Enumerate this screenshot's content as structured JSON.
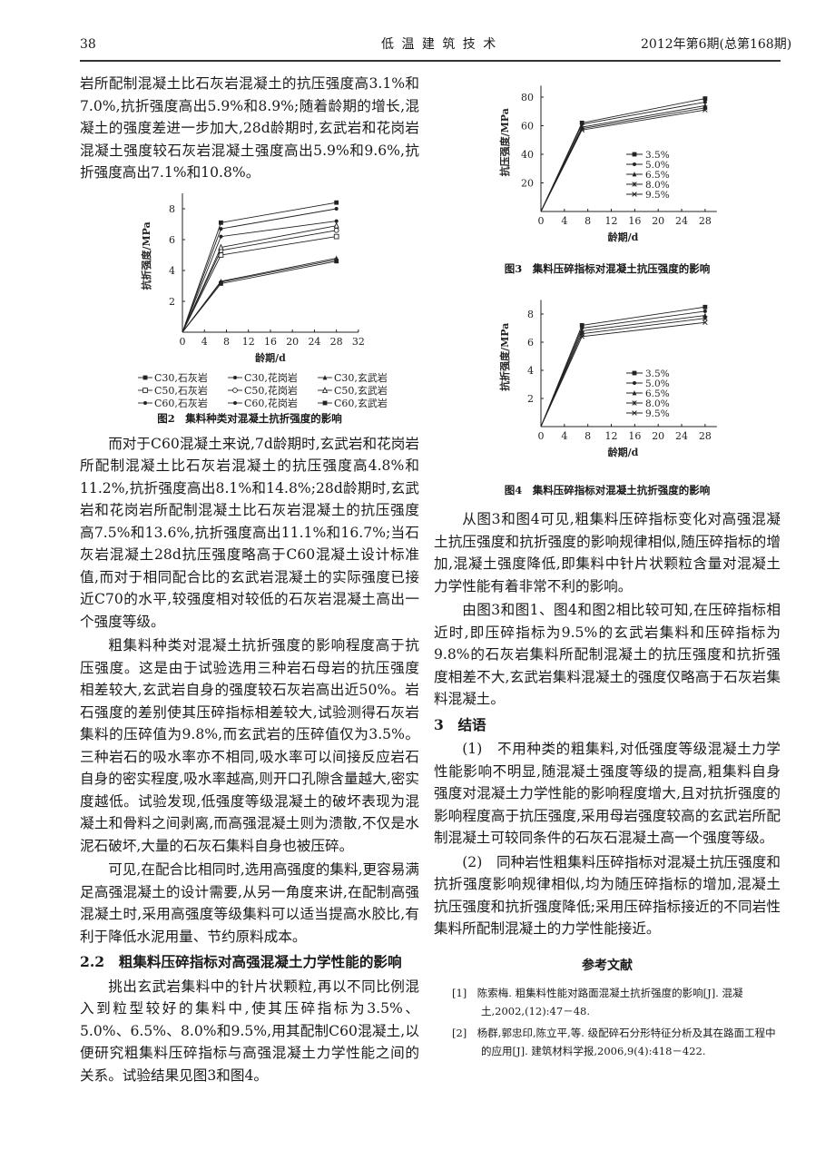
{
  "header": {
    "page_number": "38",
    "journal": "低 温 建 筑 技 术",
    "issue": "2012年第6期(总第168期)"
  },
  "left": {
    "p0": "岩所配制混凝土比石灰岩混凝土的抗压强度高3.1%和7.0%,抗折强度高出5.9%和8.9%;随着龄期的增长,混凝土的强度差进一步加大,28d龄期时,玄武岩和花岗岩混凝土强度较石灰岩混凝土强度高出5.9%和9.6%,抗折强度高出7.1%和10.8%。",
    "p1": "而对于C60混凝土来说,7d龄期时,玄武岩和花岗岩所配制混凝土比石灰岩混凝土的抗压强度高4.8%和11.2%,抗折强度高出8.1%和14.8%;28d龄期时,玄武岩和花岗岩所配制混凝土比石灰岩混凝土的抗压强度高7.5%和13.6%,抗折强度高出11.1%和16.7%;当石灰岩混凝土28d抗压强度略高于C60混凝土设计标准值,而对于相同配合比的玄武岩混凝土的实际强度已接近C70的水平,较强度相对较低的石灰岩混凝土高出一个强度等级。",
    "p2": "粗集料种类对混凝土抗折强度的影响程度高于抗压强度。这是由于试验选用三种岩石母岩的抗压强度相差较大,玄武岩自身的强度较石灰岩高出近50%。岩石强度的差别使其压碎指标相差较大,试验测得石灰岩集料的压碎值为9.8%,而玄武岩的压碎值仅为3.5%。三种岩石的吸水率亦不相同,吸水率可以间接反应岩石自身的密实程度,吸水率越高,则开口孔隙含量越大,密实度越低。试验发现,低强度等级混凝土的破坏表现为混凝土和骨料之间剥离,而高强混凝土则为溃散,不仅是水泥石破坏,大量的石灰石集料自身也被压碎。",
    "p3": "可见,在配合比相同时,选用高强度的集料,更容易满足高强混凝土的设计需要,从另一角度来讲,在配制高强混凝土时,采用高强度等级集料可以适当提高水胶比,有利于降低水泥用量、节约原料成本。",
    "heading_2_2": "2.2　粗集料压碎指标对高强混凝土力学性能的影响",
    "p4": "挑出玄武岩集料中的针片状颗粒,再以不同比例混入到粒型较好的集料中,使其压碎指标为3.5%、5.0%、6.5%、8.0%和9.5%,用其配制C60混凝土,以便研究粗集料压碎指标与高强混凝土力学性能之间的关系。试验结果见图3和图4。"
  },
  "right": {
    "p5": "从图3和图4可见,粗集料压碎指标变化对高强混凝土抗压强度和抗折强度的影响规律相似,随压碎指标的增加,混凝土强度降低,即集料中针片状颗粒含量对混凝土力学性能有着非常不利的影响。",
    "p6": "由图3和图1、图4和图2相比较可知,在压碎指标相近时,即压碎指标为9.5%的玄武岩集料和压碎指标为9.8%的石灰岩集料所配制混凝土的抗压强度和抗折强度相差不大,玄武岩集料混凝土的强度仅略高于石灰岩集料混凝土。",
    "heading_3": "3　结语",
    "p7": "(1)　不用种类的粗集料,对低强度等级混凝土力学性能影响不明显,随混凝土强度等级的提高,粗集料自身强度对混凝土力学性能的影响程度增大,且对抗折强度的影响程度高于抗压强度,采用母岩强度较高的玄武岩所配制混凝土可较同条件的石灰石混凝土高一个强度等级。",
    "p8": "(2)　同种岩性粗集料压碎指标对混凝土抗压强度和抗折强度影响规律相似,均为随压碎指标的增加,混凝土抗压强度和抗折强度降低;采用压碎指标接近的不同岩性集料所配制混凝土的力学性能接近。",
    "references_title": "参考文献",
    "references": [
      "[1]　陈索梅. 粗集料性能对路面混凝土抗折强度的影响[J]. 混凝土,2002,(12):47－48.",
      "[2]　杨群,郭忠印,陈立平,等. 级配碎石分形特征分析及其在路面工程中的应用[J]. 建筑材料学报,2006,9(4):418－422."
    ]
  },
  "chart_data": [
    {
      "type": "line",
      "title": "图2　集料种类对混凝土抗折强度的影响",
      "xlabel": "龄期/d",
      "ylabel": "抗折强度/MPa",
      "xlim": [
        0,
        32
      ],
      "ylim": [
        0,
        9
      ],
      "xticks": [
        0,
        4,
        8,
        12,
        16,
        20,
        24,
        28,
        32
      ],
      "yticks": [
        2,
        4,
        6,
        8
      ],
      "grid": false,
      "legend": "bottom",
      "x": [
        0,
        7,
        28
      ],
      "series": [
        {
          "name": "C30,石灰岩",
          "marker": "square",
          "values": [
            0,
            3.15,
            4.6
          ]
        },
        {
          "name": "C30,花岗岩",
          "marker": "dot",
          "values": [
            0,
            3.25,
            4.7
          ]
        },
        {
          "name": "C30,玄武岩",
          "marker": "triangle",
          "values": [
            0,
            3.3,
            4.8
          ]
        },
        {
          "name": "C50,石灰岩",
          "marker": "open-square",
          "values": [
            0,
            5.0,
            6.2
          ]
        },
        {
          "name": "C50,花岗岩",
          "marker": "open-circle",
          "values": [
            0,
            5.3,
            6.6
          ]
        },
        {
          "name": "C50,玄武岩",
          "marker": "open-triangle",
          "values": [
            0,
            5.5,
            6.9
          ]
        },
        {
          "name": "C60,石灰岩",
          "marker": "dot",
          "values": [
            0,
            6.2,
            7.2
          ]
        },
        {
          "name": "C60,花岗岩",
          "marker": "dot",
          "values": [
            0,
            6.7,
            8.0
          ]
        },
        {
          "name": "C60,玄武岩",
          "marker": "square",
          "values": [
            0,
            7.1,
            8.4
          ]
        }
      ]
    },
    {
      "type": "line",
      "title": "图3　集料压碎指标对混凝土抗压强度的影响",
      "xlabel": "龄期/d",
      "ylabel": "抗压强度/MPa",
      "xlim": [
        0,
        30
      ],
      "ylim": [
        0,
        88
      ],
      "xticks": [
        0,
        4,
        8,
        12,
        16,
        20,
        24,
        28
      ],
      "yticks": [
        20,
        40,
        60,
        80
      ],
      "grid": false,
      "legend": "right",
      "x": [
        0,
        7,
        28
      ],
      "series": [
        {
          "name": "3.5%",
          "marker": "square",
          "values": [
            0,
            62,
            79
          ]
        },
        {
          "name": "5.0%",
          "marker": "dot",
          "values": [
            0,
            61,
            76.5
          ]
        },
        {
          "name": "6.5%",
          "marker": "triangle",
          "values": [
            0,
            59,
            74
          ]
        },
        {
          "name": "8.0%",
          "marker": "star",
          "values": [
            0,
            58,
            72.5
          ]
        },
        {
          "name": "9.5%",
          "marker": "cross",
          "values": [
            0,
            57,
            71
          ]
        }
      ]
    },
    {
      "type": "line",
      "title": "图4　集料压碎指标对混凝土抗折强度的影响",
      "xlabel": "龄期/d",
      "ylabel": "抗折强度/MPa",
      "xlim": [
        0,
        30
      ],
      "ylim": [
        0,
        9
      ],
      "xticks": [
        0,
        4,
        8,
        12,
        16,
        20,
        24,
        28
      ],
      "yticks": [
        2,
        4,
        6,
        8
      ],
      "grid": false,
      "legend": "right",
      "x": [
        0,
        7,
        28
      ],
      "series": [
        {
          "name": "3.5%",
          "marker": "square",
          "values": [
            0,
            7.2,
            8.5
          ]
        },
        {
          "name": "5.0%",
          "marker": "dot",
          "values": [
            0,
            7.0,
            8.2
          ]
        },
        {
          "name": "6.5%",
          "marker": "triangle",
          "values": [
            0,
            6.8,
            7.9
          ]
        },
        {
          "name": "8.0%",
          "marker": "star",
          "values": [
            0,
            6.6,
            7.7
          ]
        },
        {
          "name": "9.5%",
          "marker": "cross",
          "values": [
            0,
            6.4,
            7.4
          ]
        }
      ]
    }
  ]
}
